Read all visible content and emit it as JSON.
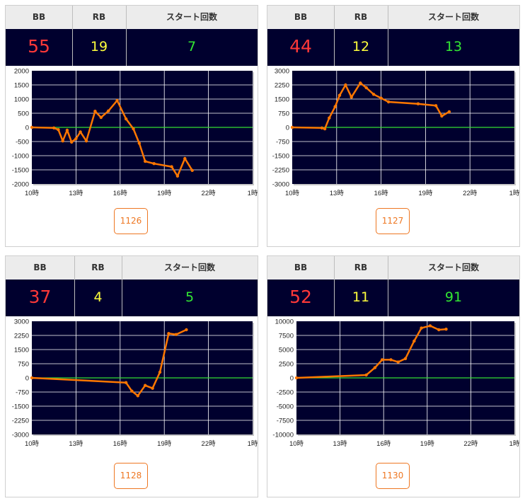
{
  "colors": {
    "bb": "#ff3838",
    "rb": "#ffff3c",
    "start": "#33e833",
    "line": "#ff7700",
    "zero_line": "#33dd33",
    "plot_bg": "#00002e",
    "accent": "#ee7722"
  },
  "headers": {
    "bb": "BB",
    "rb": "RB",
    "start": "スタート回数"
  },
  "machines": [
    {
      "number": "1126",
      "bb": "55",
      "rb": "19",
      "start": "7"
    },
    {
      "number": "1127",
      "bb": "44",
      "rb": "12",
      "start": "13"
    },
    {
      "number": "1128",
      "bb": "37",
      "rb": "4",
      "start": "5"
    },
    {
      "number": "1130",
      "bb": "52",
      "rb": "11",
      "start": "91"
    }
  ],
  "chart_data": [
    {
      "type": "line",
      "x_ticks": [
        "10時",
        "13時",
        "16時",
        "19時",
        "22時",
        "1時"
      ],
      "x_range": [
        10,
        25
      ],
      "ylim": [
        -2000,
        2000
      ],
      "y_ticks": [
        2000,
        1500,
        1000,
        500,
        0,
        -500,
        -1000,
        -1500,
        -2000
      ],
      "grid": true,
      "series": [
        {
          "points": [
            [
              10,
              0
            ],
            [
              11.5,
              -20
            ],
            [
              11.8,
              -80
            ],
            [
              12.1,
              -480
            ],
            [
              12.4,
              -100
            ],
            [
              12.7,
              -520
            ],
            [
              13,
              -400
            ],
            [
              13.3,
              -160
            ],
            [
              13.7,
              -480
            ],
            [
              14.3,
              570
            ],
            [
              14.7,
              350
            ],
            [
              15.2,
              580
            ],
            [
              15.8,
              950
            ],
            [
              16.4,
              300
            ],
            [
              16.9,
              -50
            ],
            [
              17.3,
              -560
            ],
            [
              17.7,
              -1200
            ],
            [
              18.3,
              -1280
            ],
            [
              19.5,
              -1390
            ],
            [
              19.9,
              -1720
            ],
            [
              20.4,
              -1100
            ],
            [
              20.9,
              -1520
            ]
          ]
        }
      ]
    },
    {
      "type": "line",
      "x_ticks": [
        "10時",
        "13時",
        "16時",
        "19時",
        "22時",
        "1時"
      ],
      "x_range": [
        10,
        25
      ],
      "ylim": [
        -3000,
        3000
      ],
      "y_ticks": [
        3000,
        2250,
        1500,
        750,
        0,
        -750,
        -1500,
        -2250,
        -3000
      ],
      "grid": true,
      "series": [
        {
          "points": [
            [
              10,
              0
            ],
            [
              12,
              -30
            ],
            [
              12.2,
              -80
            ],
            [
              12.5,
              500
            ],
            [
              12.9,
              1100
            ],
            [
              13.2,
              1700
            ],
            [
              13.6,
              2250
            ],
            [
              14,
              1600
            ],
            [
              14.6,
              2350
            ],
            [
              15,
              2100
            ],
            [
              15.5,
              1750
            ],
            [
              16,
              1550
            ],
            [
              16.5,
              1350
            ],
            [
              18.5,
              1250
            ],
            [
              19.7,
              1150
            ],
            [
              20.1,
              600
            ],
            [
              20.6,
              830
            ]
          ]
        }
      ]
    },
    {
      "type": "line",
      "x_ticks": [
        "10時",
        "13時",
        "16時",
        "19時",
        "22時",
        "1時"
      ],
      "x_range": [
        10,
        25
      ],
      "ylim": [
        -3000,
        3000
      ],
      "y_ticks": [
        3000,
        2250,
        1500,
        750,
        0,
        -750,
        -1500,
        -2250,
        -3000
      ],
      "grid": true,
      "series": [
        {
          "points": [
            [
              10,
              0
            ],
            [
              16.4,
              -250
            ],
            [
              16.8,
              -700
            ],
            [
              17.2,
              -950
            ],
            [
              17.7,
              -400
            ],
            [
              18.2,
              -550
            ],
            [
              18.7,
              300
            ],
            [
              19.3,
              2350
            ],
            [
              19.8,
              2300
            ],
            [
              20.5,
              2550
            ]
          ]
        }
      ]
    },
    {
      "type": "line",
      "x_ticks": [
        "10時",
        "13時",
        "16時",
        "19時",
        "22時",
        "1時"
      ],
      "x_range": [
        10,
        25
      ],
      "ylim": [
        -10000,
        10000
      ],
      "y_ticks": [
        10000,
        7500,
        5000,
        2500,
        0,
        -2500,
        -5000,
        -7500,
        -10000
      ],
      "grid": true,
      "series": [
        {
          "points": [
            [
              10,
              0
            ],
            [
              14.8,
              500
            ],
            [
              15.4,
              1800
            ],
            [
              15.9,
              3200
            ],
            [
              16.5,
              3200
            ],
            [
              17,
              2800
            ],
            [
              17.5,
              3400
            ],
            [
              18.1,
              6500
            ],
            [
              18.6,
              8800
            ],
            [
              19.2,
              9200
            ],
            [
              19.8,
              8500
            ],
            [
              20.3,
              8600
            ]
          ]
        }
      ]
    }
  ]
}
